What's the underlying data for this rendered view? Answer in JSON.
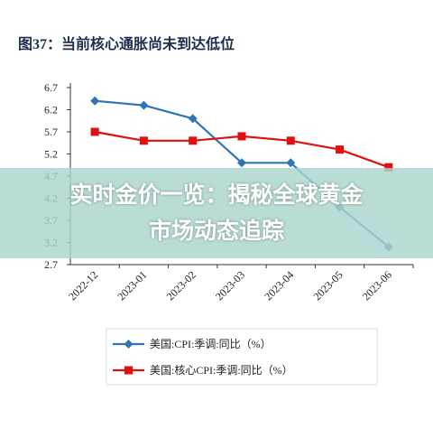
{
  "chart_data": {
    "type": "line",
    "title": "图37：当前核心通胀尚未到达低位",
    "categories": [
      "2022-12",
      "2023-01",
      "2023-02",
      "2023-03",
      "2023-04",
      "2023-05",
      "2023-06"
    ],
    "series": [
      {
        "name": "美国:CPI:季调:同比（%）",
        "color": "#2e75b6",
        "marker": "diamond",
        "values": [
          6.4,
          6.3,
          6.0,
          5.0,
          5.0,
          4.0,
          3.1
        ]
      },
      {
        "name": "美国:核心CPI:季调:同比（%）",
        "color": "#e01010",
        "marker": "square",
        "values": [
          5.7,
          5.5,
          5.5,
          5.6,
          5.5,
          5.3,
          4.9
        ]
      }
    ],
    "ylim": [
      2.7,
      6.7
    ],
    "yticks": [
      2.7,
      3.2,
      3.7,
      4.2,
      4.7,
      5.2,
      5.7,
      6.2,
      6.7
    ],
    "grid": false,
    "legend": "bottom"
  },
  "banner": {
    "lines": [
      "实时金价一览：揭秘全球黄金",
      "市场动态追踪"
    ]
  }
}
